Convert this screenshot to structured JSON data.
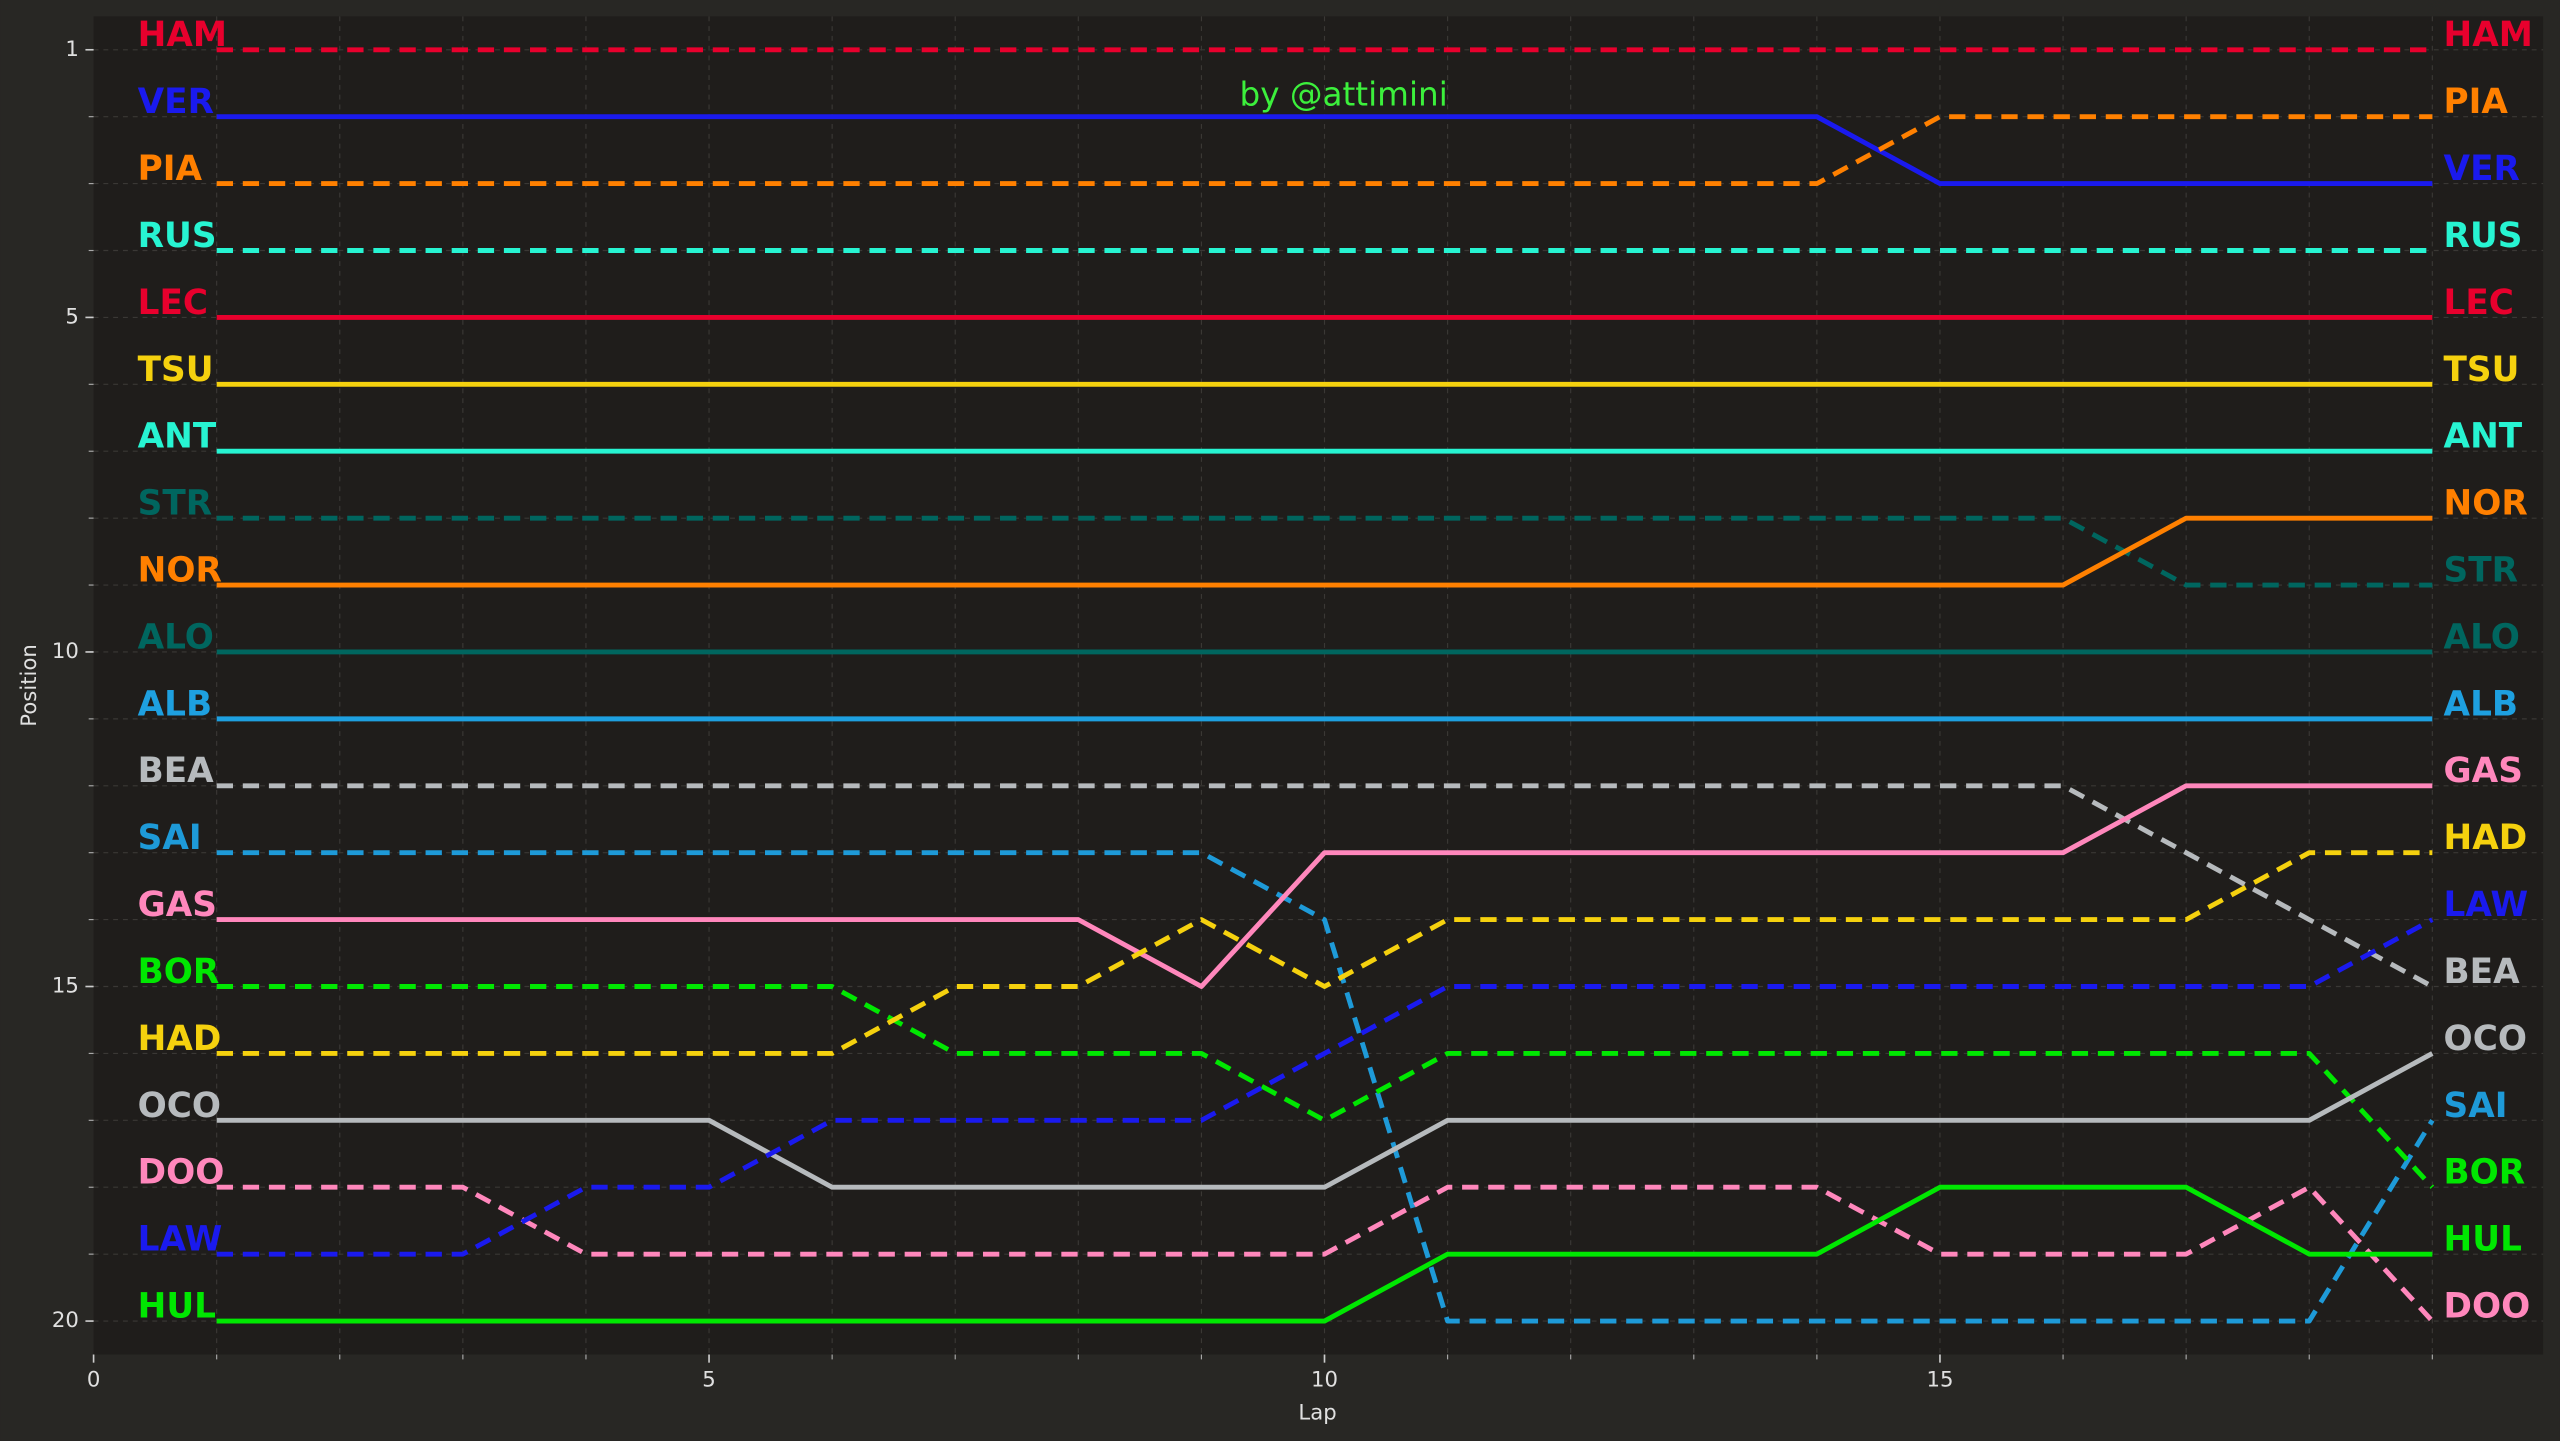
{
  "chart_data": {
    "type": "line",
    "annotation": "by @attimini",
    "xlabel": "Lap",
    "ylabel": "Position",
    "x": [
      1,
      2,
      3,
      4,
      5,
      6,
      7,
      8,
      9,
      10,
      11,
      12,
      13,
      14,
      15,
      16,
      17,
      18,
      19
    ],
    "xlim": [
      0,
      19.9
    ],
    "ylim": [
      20.5,
      0.5
    ],
    "y_inverted": true,
    "xticks": [
      0,
      5,
      10,
      15
    ],
    "yticks": [
      1,
      5,
      10,
      15,
      20
    ],
    "minor_xticks": [
      1,
      2,
      3,
      4,
      5,
      6,
      7,
      8,
      9,
      10,
      11,
      12,
      13,
      14,
      15,
      16,
      17,
      18,
      19
    ],
    "minor_yticks": [
      1,
      2,
      3,
      4,
      5,
      6,
      7,
      8,
      9,
      10,
      11,
      12,
      13,
      14,
      15,
      16,
      17,
      18,
      19,
      20
    ],
    "grid": true,
    "series": [
      {
        "name": "HAM",
        "color": "#e8002d",
        "linestyle": "dashed",
        "values": [
          1,
          1,
          1,
          1,
          1,
          1,
          1,
          1,
          1,
          1,
          1,
          1,
          1,
          1,
          1,
          1,
          1,
          1,
          1
        ]
      },
      {
        "name": "VER",
        "color": "#1a1aee",
        "linestyle": "solid",
        "values": [
          2,
          2,
          2,
          2,
          2,
          2,
          2,
          2,
          2,
          2,
          2,
          2,
          2,
          2,
          3,
          3,
          3,
          3,
          3
        ]
      },
      {
        "name": "PIA",
        "color": "#ff8000",
        "linestyle": "dashed",
        "values": [
          3,
          3,
          3,
          3,
          3,
          3,
          3,
          3,
          3,
          3,
          3,
          3,
          3,
          3,
          2,
          2,
          2,
          2,
          2
        ]
      },
      {
        "name": "RUS",
        "color": "#27f4d2",
        "linestyle": "dashed",
        "values": [
          4,
          4,
          4,
          4,
          4,
          4,
          4,
          4,
          4,
          4,
          4,
          4,
          4,
          4,
          4,
          4,
          4,
          4,
          4
        ]
      },
      {
        "name": "LEC",
        "color": "#e8002d",
        "linestyle": "solid",
        "values": [
          5,
          5,
          5,
          5,
          5,
          5,
          5,
          5,
          5,
          5,
          5,
          5,
          5,
          5,
          5,
          5,
          5,
          5,
          5
        ]
      },
      {
        "name": "TSU",
        "color": "#f5d10e",
        "linestyle": "solid",
        "values": [
          6,
          6,
          6,
          6,
          6,
          6,
          6,
          6,
          6,
          6,
          6,
          6,
          6,
          6,
          6,
          6,
          6,
          6,
          6
        ]
      },
      {
        "name": "ANT",
        "color": "#27f4d2",
        "linestyle": "solid",
        "values": [
          7,
          7,
          7,
          7,
          7,
          7,
          7,
          7,
          7,
          7,
          7,
          7,
          7,
          7,
          7,
          7,
          7,
          7,
          7
        ]
      },
      {
        "name": "STR",
        "color": "#00665f",
        "linestyle": "dashed",
        "values": [
          8,
          8,
          8,
          8,
          8,
          8,
          8,
          8,
          8,
          8,
          8,
          8,
          8,
          8,
          8,
          8,
          9,
          9,
          9
        ]
      },
      {
        "name": "NOR",
        "color": "#ff8000",
        "linestyle": "solid",
        "values": [
          9,
          9,
          9,
          9,
          9,
          9,
          9,
          9,
          9,
          9,
          9,
          9,
          9,
          9,
          9,
          9,
          8,
          8,
          8
        ]
      },
      {
        "name": "ALO",
        "color": "#00665f",
        "linestyle": "solid",
        "values": [
          10,
          10,
          10,
          10,
          10,
          10,
          10,
          10,
          10,
          10,
          10,
          10,
          10,
          10,
          10,
          10,
          10,
          10,
          10
        ]
      },
      {
        "name": "ALB",
        "color": "#1ea0e0",
        "linestyle": "solid",
        "values": [
          11,
          11,
          11,
          11,
          11,
          11,
          11,
          11,
          11,
          11,
          11,
          11,
          11,
          11,
          11,
          11,
          11,
          11,
          11
        ]
      },
      {
        "name": "BEA",
        "color": "#b6babd",
        "linestyle": "dashed",
        "values": [
          12,
          12,
          12,
          12,
          12,
          12,
          12,
          12,
          12,
          12,
          12,
          12,
          12,
          12,
          12,
          12,
          13,
          14,
          15
        ]
      },
      {
        "name": "SAI",
        "color": "#1e9ad8",
        "linestyle": "dashed",
        "values": [
          13,
          13,
          13,
          13,
          13,
          13,
          13,
          13,
          13,
          14,
          20,
          20,
          20,
          20,
          20,
          20,
          20,
          20,
          17
        ]
      },
      {
        "name": "GAS",
        "color": "#ff87bc",
        "linestyle": "solid",
        "values": [
          14,
          14,
          14,
          14,
          14,
          14,
          14,
          14,
          15,
          13,
          13,
          13,
          13,
          13,
          13,
          13,
          12,
          12,
          12
        ]
      },
      {
        "name": "BOR",
        "color": "#00e701",
        "linestyle": "dashed",
        "values": [
          15,
          15,
          15,
          15,
          15,
          15,
          16,
          16,
          16,
          17,
          16,
          16,
          16,
          16,
          16,
          16,
          16,
          16,
          18
        ]
      },
      {
        "name": "HAD",
        "color": "#f5d10e",
        "linestyle": "dashed",
        "values": [
          16,
          16,
          16,
          16,
          16,
          16,
          15,
          15,
          14,
          15,
          14,
          14,
          14,
          14,
          14,
          14,
          14,
          13,
          13
        ]
      },
      {
        "name": "OCO",
        "color": "#b6babd",
        "linestyle": "solid",
        "values": [
          17,
          17,
          17,
          17,
          17,
          18,
          18,
          18,
          18,
          18,
          17,
          17,
          17,
          17,
          17,
          17,
          17,
          17,
          16
        ]
      },
      {
        "name": "DOO",
        "color": "#ff87bc",
        "linestyle": "dashed",
        "values": [
          18,
          18,
          18,
          19,
          19,
          19,
          19,
          19,
          19,
          19,
          18,
          18,
          18,
          18,
          19,
          19,
          19,
          18,
          20
        ]
      },
      {
        "name": "LAW",
        "color": "#1a1aee",
        "linestyle": "dashed",
        "values": [
          19,
          19,
          19,
          18,
          18,
          17,
          17,
          17,
          17,
          16,
          15,
          15,
          15,
          15,
          15,
          15,
          15,
          15,
          14
        ]
      },
      {
        "name": "HUL",
        "color": "#00e701",
        "linestyle": "solid",
        "values": [
          20,
          20,
          20,
          20,
          20,
          20,
          20,
          20,
          20,
          20,
          19,
          19,
          19,
          19,
          18,
          18,
          18,
          19,
          19
        ]
      }
    ]
  }
}
